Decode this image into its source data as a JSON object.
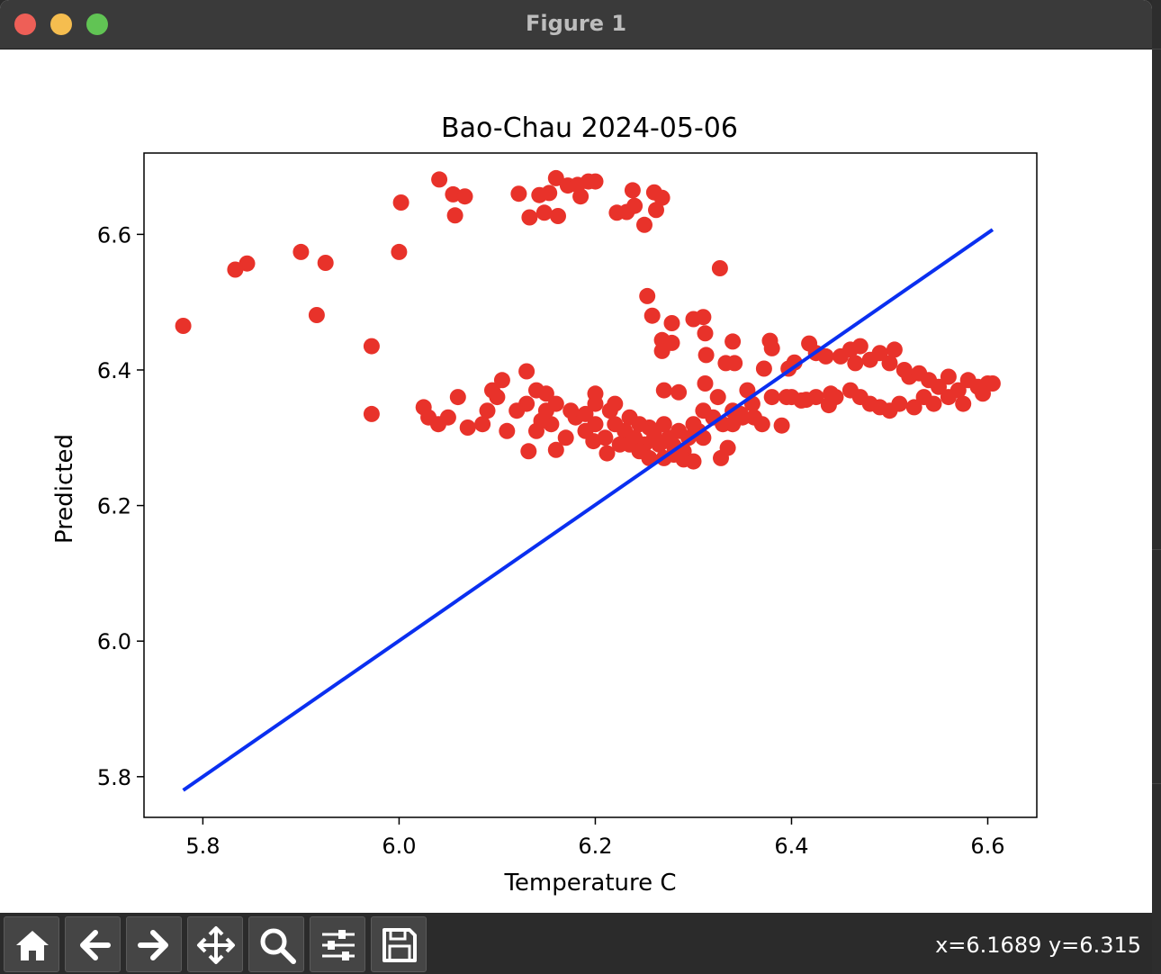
{
  "window": {
    "title": "Figure 1"
  },
  "toolbar": {
    "buttons": [
      {
        "name": "home-button",
        "icon": "home-icon"
      },
      {
        "name": "back-button",
        "icon": "arrow-left-icon"
      },
      {
        "name": "forward-button",
        "icon": "arrow-right-icon"
      },
      {
        "name": "pan-button",
        "icon": "move-icon"
      },
      {
        "name": "zoom-button",
        "icon": "magnifier-icon"
      },
      {
        "name": "configure-subplots-button",
        "icon": "sliders-icon"
      },
      {
        "name": "save-button",
        "icon": "floppy-disk-icon"
      }
    ],
    "coordinates": "x=6.1689 y=6.315"
  },
  "chart_data": {
    "type": "scatter",
    "title": "Bao-Chau 2024-05-06",
    "xlabel": "Temperature C",
    "ylabel": "Predicted",
    "xlim": [
      5.74,
      6.65
    ],
    "ylim": [
      5.74,
      6.72
    ],
    "xticks": [
      "5.8",
      "6.0",
      "6.2",
      "6.4",
      "6.6"
    ],
    "xtick_values": [
      5.8,
      6.0,
      6.2,
      6.4,
      6.6
    ],
    "yticks": [
      "5.8",
      "6.0",
      "6.2",
      "6.4",
      "6.6"
    ],
    "ytick_values": [
      5.8,
      6.0,
      6.2,
      6.4,
      6.6
    ],
    "grid": false,
    "colors": {
      "points": "#e8322a",
      "line": "#0a2ff0"
    },
    "series": [
      {
        "type": "scatter",
        "points": [
          [
            5.78,
            6.465
          ],
          [
            5.833,
            6.548
          ],
          [
            5.845,
            6.557
          ],
          [
            5.9,
            6.574
          ],
          [
            5.916,
            6.481
          ],
          [
            5.925,
            6.558
          ],
          [
            5.972,
            6.435
          ],
          [
            5.972,
            6.335
          ],
          [
            6.0,
            6.574
          ],
          [
            6.002,
            6.647
          ],
          [
            6.041,
            6.681
          ],
          [
            6.055,
            6.659
          ],
          [
            6.057,
            6.628
          ],
          [
            6.067,
            6.656
          ],
          [
            6.122,
            6.66
          ],
          [
            6.133,
            6.625
          ],
          [
            6.143,
            6.658
          ],
          [
            6.148,
            6.632
          ],
          [
            6.153,
            6.661
          ],
          [
            6.16,
            6.683
          ],
          [
            6.162,
            6.627
          ],
          [
            6.172,
            6.672
          ],
          [
            6.182,
            6.673
          ],
          [
            6.185,
            6.656
          ],
          [
            6.193,
            6.678
          ],
          [
            6.2,
            6.678
          ],
          [
            6.222,
            6.632
          ],
          [
            6.232,
            6.633
          ],
          [
            6.238,
            6.665
          ],
          [
            6.24,
            6.642
          ],
          [
            6.25,
            6.614
          ],
          [
            6.26,
            6.662
          ],
          [
            6.262,
            6.636
          ],
          [
            6.268,
            6.654
          ],
          [
            6.327,
            6.55
          ],
          [
            6.253,
            6.509
          ],
          [
            6.258,
            6.48
          ],
          [
            6.268,
            6.444
          ],
          [
            6.268,
            6.428
          ],
          [
            6.278,
            6.469
          ],
          [
            6.278,
            6.44
          ],
          [
            6.3,
            6.475
          ],
          [
            6.31,
            6.478
          ],
          [
            6.312,
            6.454
          ],
          [
            6.313,
            6.422
          ],
          [
            6.333,
            6.41
          ],
          [
            6.342,
            6.41
          ],
          [
            6.34,
            6.442
          ],
          [
            6.372,
            6.402
          ],
          [
            6.378,
            6.443
          ],
          [
            6.38,
            6.432
          ],
          [
            6.397,
            6.402
          ],
          [
            6.403,
            6.411
          ],
          [
            6.418,
            6.439
          ],
          [
            6.425,
            6.425
          ],
          [
            6.435,
            6.42
          ],
          [
            6.45,
            6.42
          ],
          [
            6.46,
            6.43
          ],
          [
            6.465,
            6.41
          ],
          [
            6.47,
            6.435
          ],
          [
            6.48,
            6.415
          ],
          [
            6.49,
            6.425
          ],
          [
            6.5,
            6.41
          ],
          [
            6.505,
            6.43
          ],
          [
            6.515,
            6.4
          ],
          [
            6.52,
            6.39
          ],
          [
            6.53,
            6.395
          ],
          [
            6.54,
            6.385
          ],
          [
            6.55,
            6.375
          ],
          [
            6.56,
            6.39
          ],
          [
            6.57,
            6.37
          ],
          [
            6.58,
            6.385
          ],
          [
            6.59,
            6.375
          ],
          [
            6.6,
            6.38
          ],
          [
            6.605,
            6.38
          ],
          [
            6.595,
            6.365
          ],
          [
            6.575,
            6.35
          ],
          [
            6.56,
            6.36
          ],
          [
            6.545,
            6.35
          ],
          [
            6.535,
            6.36
          ],
          [
            6.525,
            6.345
          ],
          [
            6.51,
            6.35
          ],
          [
            6.5,
            6.34
          ],
          [
            6.49,
            6.345
          ],
          [
            6.48,
            6.35
          ],
          [
            6.47,
            6.36
          ],
          [
            6.46,
            6.37
          ],
          [
            6.445,
            6.36
          ],
          [
            6.438,
            6.348
          ],
          [
            6.425,
            6.36
          ],
          [
            6.41,
            6.355
          ],
          [
            6.395,
            6.36
          ],
          [
            6.38,
            6.36
          ],
          [
            6.36,
            6.35
          ],
          [
            6.37,
            6.32
          ],
          [
            6.39,
            6.318
          ],
          [
            6.35,
            6.33
          ],
          [
            6.34,
            6.34
          ],
          [
            6.33,
            6.32
          ],
          [
            6.32,
            6.33
          ],
          [
            6.31,
            6.34
          ],
          [
            6.305,
            6.31
          ],
          [
            6.3,
            6.32
          ],
          [
            6.295,
            6.3
          ],
          [
            6.29,
            6.28
          ],
          [
            6.285,
            6.31
          ],
          [
            6.28,
            6.275
          ],
          [
            6.275,
            6.3
          ],
          [
            6.27,
            6.32
          ],
          [
            6.265,
            6.29
          ],
          [
            6.26,
            6.3
          ],
          [
            6.255,
            6.315
          ],
          [
            6.25,
            6.29
          ],
          [
            6.245,
            6.32
          ],
          [
            6.24,
            6.3
          ],
          [
            6.235,
            6.33
          ],
          [
            6.23,
            6.31
          ],
          [
            6.225,
            6.29
          ],
          [
            6.22,
            6.32
          ],
          [
            6.215,
            6.34
          ],
          [
            6.21,
            6.3
          ],
          [
            6.2,
            6.35
          ],
          [
            6.2,
            6.32
          ],
          [
            6.19,
            6.31
          ],
          [
            6.18,
            6.33
          ],
          [
            6.17,
            6.3
          ],
          [
            6.16,
            6.35
          ],
          [
            6.155,
            6.32
          ],
          [
            6.15,
            6.34
          ],
          [
            6.14,
            6.31
          ],
          [
            6.13,
            6.35
          ],
          [
            6.12,
            6.34
          ],
          [
            6.11,
            6.31
          ],
          [
            6.1,
            6.36
          ],
          [
            6.09,
            6.34
          ],
          [
            6.085,
            6.32
          ],
          [
            6.07,
            6.315
          ],
          [
            6.06,
            6.36
          ],
          [
            6.05,
            6.33
          ],
          [
            6.04,
            6.32
          ],
          [
            6.03,
            6.33
          ],
          [
            6.025,
            6.345
          ],
          [
            6.095,
            6.37
          ],
          [
            6.105,
            6.385
          ],
          [
            6.13,
            6.398
          ],
          [
            6.132,
            6.28
          ],
          [
            6.16,
            6.282
          ],
          [
            6.198,
            6.295
          ],
          [
            6.212,
            6.277
          ],
          [
            6.27,
            6.37
          ],
          [
            6.285,
            6.367
          ],
          [
            6.312,
            6.38
          ],
          [
            6.325,
            6.36
          ],
          [
            6.355,
            6.37
          ],
          [
            6.328,
            6.27
          ],
          [
            6.335,
            6.285
          ],
          [
            6.255,
            6.27
          ],
          [
            6.27,
            6.27
          ],
          [
            6.29,
            6.268
          ],
          [
            6.3,
            6.265
          ],
          [
            6.28,
            6.288
          ],
          [
            6.31,
            6.3
          ],
          [
            6.4,
            6.36
          ],
          [
            6.415,
            6.356
          ],
          [
            6.44,
            6.365
          ],
          [
            6.2,
            6.365
          ],
          [
            6.22,
            6.35
          ],
          [
            6.15,
            6.365
          ],
          [
            6.14,
            6.37
          ],
          [
            6.175,
            6.34
          ],
          [
            6.19,
            6.335
          ],
          [
            6.145,
            6.325
          ],
          [
            6.235,
            6.29
          ],
          [
            6.245,
            6.28
          ],
          [
            6.26,
            6.31
          ],
          [
            6.34,
            6.32
          ],
          [
            6.348,
            6.335
          ],
          [
            6.362,
            6.33
          ]
        ]
      },
      {
        "type": "line",
        "points": [
          [
            5.78,
            5.78
          ],
          [
            6.605,
            6.607
          ]
        ]
      }
    ]
  }
}
